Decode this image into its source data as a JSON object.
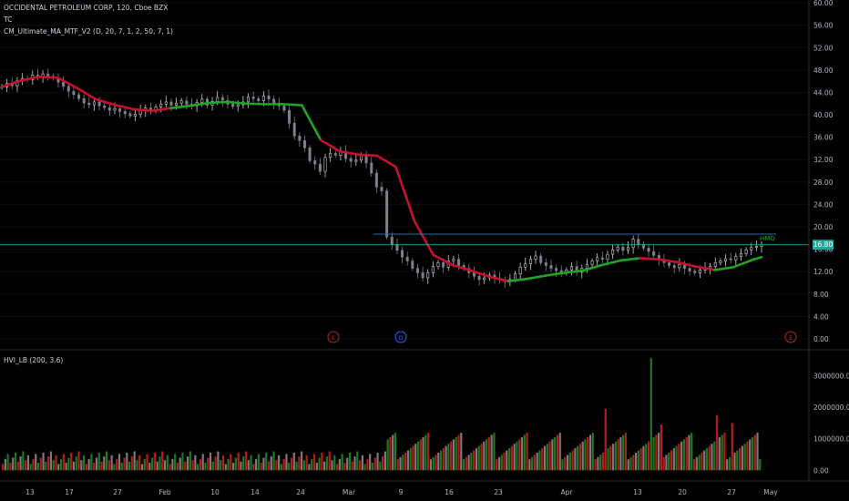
{
  "header": {
    "symbol_line": "OCCIDENTAL PETROLEUM CORP, 120, Cboe BZX",
    "line2": "TC",
    "indicator": "CM_Ultimate_MA_MTF_V2 (D, 20, 7, 1, 2, 50, 7, 1)"
  },
  "volume_pane": {
    "label": "HVI_LB (200, 3.6)"
  },
  "annotations": {
    "level_label": "HMQ"
  },
  "price_marker": {
    "value": "16.80"
  },
  "event_markers": [
    {
      "label": "E",
      "color": "#b22833"
    },
    {
      "label": "D",
      "color": "#2962ff"
    },
    {
      "label": "E",
      "color": "#b22833"
    }
  ],
  "colors": {
    "background": "#000000",
    "ma_down": "#c8102e",
    "ma_up": "#1fa526",
    "level_line": "#2e6da4",
    "price_line": "#26a69a",
    "vol_red": "#b71c1c",
    "vol_green": "#1b7a1b",
    "vol_gray": "#7a7a7a"
  },
  "chart_data": {
    "type": "candlestick",
    "price_axis": {
      "ticks": [
        "60.00",
        "56.00",
        "52.00",
        "48.00",
        "44.00",
        "40.00",
        "36.00",
        "32.00",
        "28.00",
        "24.00",
        "20.00",
        "16.00",
        "12.00",
        "8.00",
        "4.00",
        "0.00"
      ],
      "ylim": [
        -1.3,
        60.5
      ]
    },
    "volume_axis": {
      "ticks": [
        "3000000.00",
        "2000000.00",
        "1000000.00",
        "0.00"
      ],
      "ylim": [
        -250000,
        3700000
      ]
    },
    "x_labels": [
      "13",
      "17",
      "27",
      "Feb",
      "10",
      "14",
      "24",
      "Mar",
      "9",
      "16",
      "23",
      "Apr",
      "13",
      "20",
      "27",
      "May"
    ],
    "horizontal_level": 18.7,
    "last_price": 16.8,
    "ma_series": {
      "x": [
        0,
        4,
        8,
        12,
        16,
        20,
        24,
        28,
        32,
        36,
        40,
        44,
        48,
        52,
        56,
        60,
        64,
        68,
        72,
        76,
        80,
        84,
        88,
        92,
        96,
        100,
        104,
        108,
        112,
        116,
        120,
        124,
        128,
        132,
        136,
        140,
        144,
        148,
        152,
        156,
        160,
        162
      ],
      "y": [
        45,
        46.1,
        46.8,
        46.6,
        44.8,
        42.8,
        41.8,
        41,
        40.7,
        41.2,
        41.6,
        42.1,
        42.3,
        42,
        41.9,
        41.9,
        41.7,
        35.5,
        33.5,
        32.9,
        32.7,
        30.7,
        21,
        15,
        13.2,
        12.2,
        11.1,
        10.3,
        10.7,
        11.3,
        11.8,
        12.2,
        13.2,
        14,
        14.4,
        14.2,
        13.7,
        12.9,
        12.3,
        12.8,
        14.1,
        14.6
      ],
      "up_ranges": [
        [
          34,
          66
        ],
        [
          108,
          136
        ],
        [
          150,
          162
        ]
      ]
    },
    "candles_close": [
      45,
      45.6,
      45.2,
      46.1,
      46.5,
      46.3,
      47.1,
      46.8,
      47.3,
      46.9,
      46.6,
      45.8,
      45.1,
      44.2,
      43.6,
      42.9,
      42.1,
      41.8,
      42.3,
      41.6,
      41.3,
      40.8,
      41.1,
      40.6,
      40.2,
      39.8,
      40.1,
      40.7,
      41.2,
      40.8,
      41.4,
      41.9,
      42.3,
      41.7,
      42.1,
      42.5,
      41.9,
      41.6,
      42.2,
      42.8,
      41.7,
      42.4,
      43.1,
      42.6,
      41.9,
      41.5,
      41.8,
      42.3,
      43.2,
      42.9,
      42.5,
      43.4,
      42.8,
      42.1,
      41.6,
      40.8,
      38.5,
      36.2,
      35.4,
      34.1,
      31.8,
      31.2,
      29.9,
      32.4,
      33.1,
      32.8,
      33.5,
      32.2,
      31.7,
      31.9,
      32.8,
      31.4,
      29.6,
      27.1,
      26.4,
      18.2,
      16.9,
      15.8,
      14.6,
      13.9,
      12.6,
      11.8,
      10.9,
      11.8,
      12.9,
      13.6,
      12.8,
      13.9,
      14.2,
      13.1,
      12.6,
      11.8,
      11.2,
      10.6,
      10.9,
      11.4,
      10.8,
      10.5,
      10.2,
      10.6,
      11.6,
      12.8,
      13.4,
      14.2,
      14.8,
      13.6,
      13.1,
      12.6,
      12.2,
      11.8,
      12.3,
      12.9,
      11.9,
      12.6,
      13.3,
      13.9,
      14.5,
      14.2,
      15.1,
      15.9,
      16.4,
      15.8,
      16.3,
      17.8,
      16.9,
      16.2,
      15.6,
      14.9,
      14.2,
      13.6,
      13.1,
      12.7,
      13.3,
      12.6,
      12.1,
      11.8,
      12.3,
      12.6,
      12.9,
      13.6,
      13.9,
      14.3,
      14.1,
      14.7,
      15.2,
      15.9,
      16.3,
      16.5,
      16.8
    ],
    "volume_highlights": [
      {
        "i": 82,
        "v": 1750000,
        "c": "red"
      },
      {
        "i": 84,
        "v": 2100000,
        "c": "gray"
      },
      {
        "i": 86,
        "v": 2350000,
        "c": "gray"
      },
      {
        "i": 89,
        "v": 1600000,
        "c": "red"
      },
      {
        "i": 95,
        "v": 1450000,
        "c": "green"
      },
      {
        "i": 110,
        "v": 1600000,
        "c": "green"
      },
      {
        "i": 118,
        "v": 1950000,
        "c": "red"
      },
      {
        "i": 127,
        "v": 3550000,
        "c": "green"
      },
      {
        "i": 129,
        "v": 1450000,
        "c": "red"
      },
      {
        "i": 140,
        "v": 1750000,
        "c": "red"
      },
      {
        "i": 143,
        "v": 1500000,
        "c": "red"
      }
    ]
  }
}
